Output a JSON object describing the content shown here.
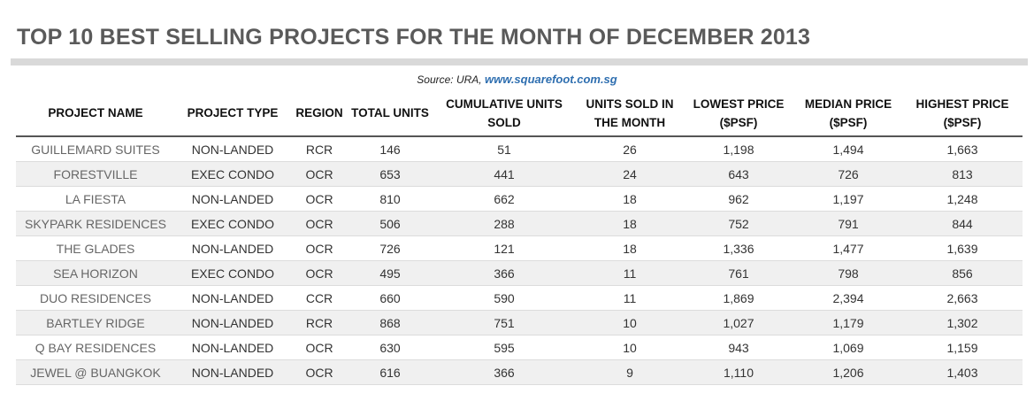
{
  "title": "TOP 10 BEST SELLING PROJECTS FOR THE MONTH OF DECEMBER 2013",
  "source": {
    "prefix": "Source: URA,",
    "link": "www.squarefoot.com.sg"
  },
  "chart_data": {
    "type": "table",
    "columns": [
      "PROJECT NAME",
      "PROJECT TYPE",
      "REGION",
      "TOTAL UNITS",
      "CUMULATIVE UNITS SOLD",
      "UNITS SOLD IN THE MONTH",
      "LOWEST PRICE ($PSF)",
      "MEDIAN PRICE ($PSF)",
      "HIGHEST PRICE ($PSF)"
    ],
    "rows": [
      [
        "GUILLEMARD SUITES",
        "NON-LANDED",
        "RCR",
        "146",
        "51",
        "26",
        "1,198",
        "1,494",
        "1,663"
      ],
      [
        "FORESTVILLE",
        "EXEC CONDO",
        "OCR",
        "653",
        "441",
        "24",
        "643",
        "726",
        "813"
      ],
      [
        "LA FIESTA",
        "NON-LANDED",
        "OCR",
        "810",
        "662",
        "18",
        "962",
        "1,197",
        "1,248"
      ],
      [
        "SKYPARK RESIDENCES",
        "EXEC CONDO",
        "OCR",
        "506",
        "288",
        "18",
        "752",
        "791",
        "844"
      ],
      [
        "THE GLADES",
        "NON-LANDED",
        "OCR",
        "726",
        "121",
        "18",
        "1,336",
        "1,477",
        "1,639"
      ],
      [
        "SEA HORIZON",
        "EXEC CONDO",
        "OCR",
        "495",
        "366",
        "11",
        "761",
        "798",
        "856"
      ],
      [
        "DUO RESIDENCES",
        "NON-LANDED",
        "CCR",
        "660",
        "590",
        "11",
        "1,869",
        "2,394",
        "2,663"
      ],
      [
        "BARTLEY RIDGE",
        "NON-LANDED",
        "RCR",
        "868",
        "751",
        "10",
        "1,027",
        "1,179",
        "1,302"
      ],
      [
        "Q BAY RESIDENCES",
        "NON-LANDED",
        "OCR",
        "630",
        "595",
        "10",
        "943",
        "1,069",
        "1,159"
      ],
      [
        "JEWEL @ BUANGKOK",
        "NON-LANDED",
        "OCR",
        "616",
        "366",
        "9",
        "1,110",
        "1,206",
        "1,403"
      ]
    ]
  }
}
